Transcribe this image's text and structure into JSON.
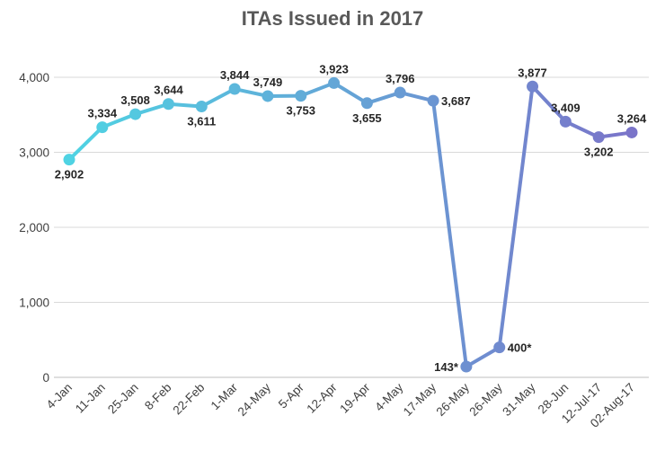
{
  "chart_data": {
    "type": "line",
    "title": "ITAs Issued in 2017",
    "xlabel": "",
    "ylabel": "",
    "ylim": [
      0,
      4000
    ],
    "yticks": [
      "0",
      "1,000",
      "2,000",
      "3,000",
      "4,000"
    ],
    "yticks_values": [
      0,
      1000,
      2000,
      3000,
      4000
    ],
    "grid": true,
    "categories": [
      "4-Jan",
      "11-Jan",
      "25-Jan",
      "8-Feb",
      "22-Feb",
      "1-Mar",
      "24-May",
      "5-Apr",
      "12-Apr",
      "19-Apr",
      "4-May",
      "17-May",
      "26-May",
      "26-May",
      "31-May",
      "28-Jun",
      "12-Jul-17",
      "02-Aug-17"
    ],
    "values": [
      2902,
      3334,
      3508,
      3644,
      3611,
      3844,
      3749,
      3753,
      3923,
      3655,
      3796,
      3687,
      143,
      400,
      3877,
      3409,
      3202,
      3264
    ],
    "labels": [
      "2,902",
      "3,334",
      "3,508",
      "3,644",
      "3,611",
      "3,844",
      "3,749",
      "3,753",
      "3,923",
      "3,655",
      "3,796",
      "3,687",
      "143*",
      "400*",
      "3,877",
      "3,409",
      "3,202",
      "3,264"
    ],
    "label_position": [
      "below",
      "above",
      "above",
      "above",
      "below",
      "above",
      "above",
      "below",
      "above",
      "below",
      "above",
      "right",
      "left",
      "right",
      "above",
      "above",
      "below",
      "above"
    ],
    "gradient_colors": [
      "#4fd3e3",
      "#7a74c9"
    ]
  }
}
